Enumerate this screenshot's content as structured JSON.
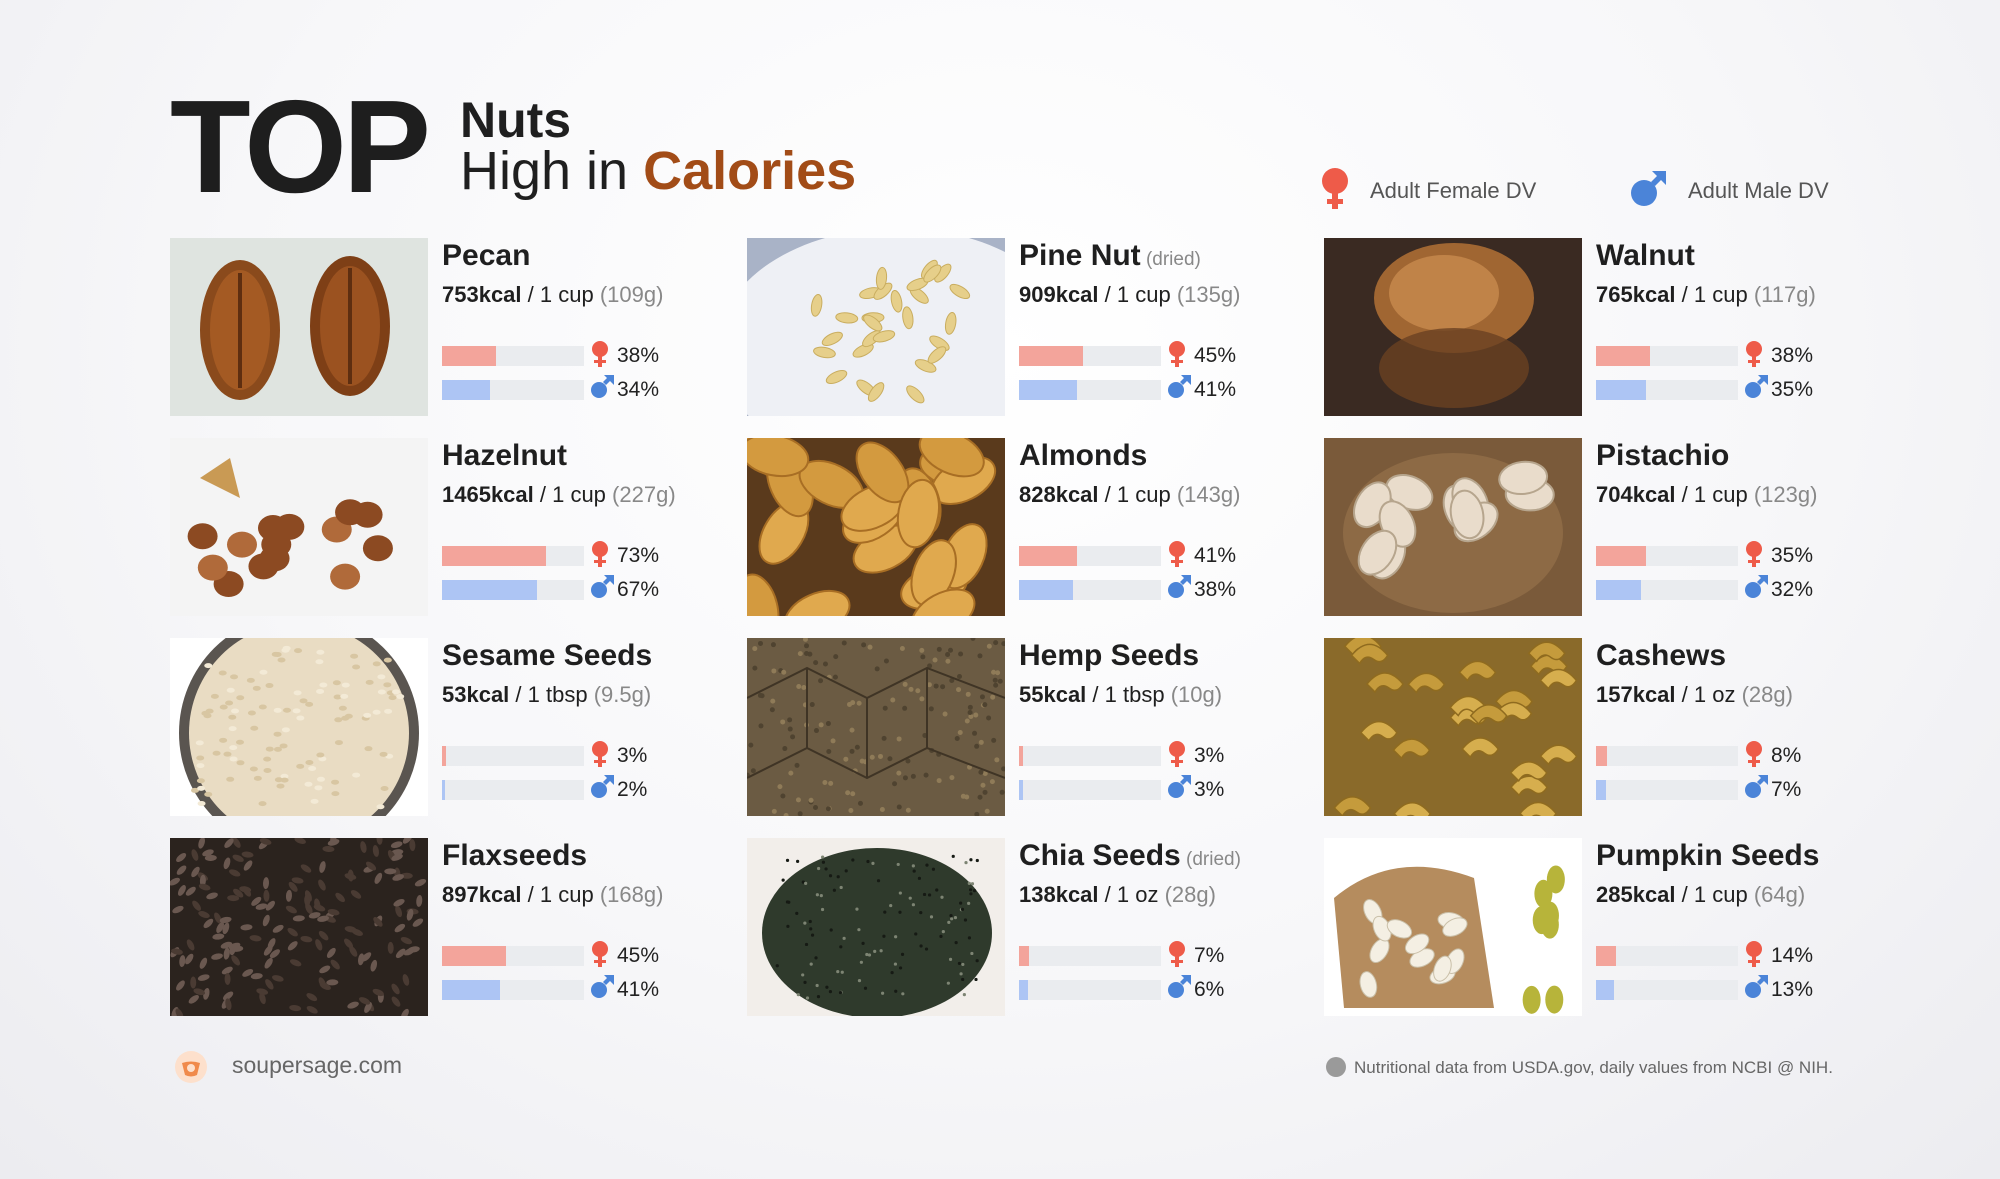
{
  "title": {
    "top": "TOP",
    "line1": "Nuts",
    "line2_prefix": "High in ",
    "line2_highlight": "Calories"
  },
  "legend": {
    "female": "Adult Female DV",
    "male": "Adult Male DV"
  },
  "colors": {
    "female": "#ee5b49",
    "male": "#4b84d8",
    "highlight": "#a24c17"
  },
  "items": [
    {
      "name": "Pecan",
      "note": "",
      "kcal": "753kcal",
      "serving": " / 1 cup ",
      "grams": "(109g)",
      "female_pct": "38%",
      "male_pct": "34%",
      "female": 38,
      "male": 34,
      "image": "pecan"
    },
    {
      "name": "Pine Nut",
      "note": " (dried)",
      "kcal": "909kcal",
      "serving": " / 1 cup ",
      "grams": "(135g)",
      "female_pct": "45%",
      "male_pct": "41%",
      "female": 45,
      "male": 41,
      "image": "pine-nut"
    },
    {
      "name": "Walnut",
      "note": "",
      "kcal": "765kcal",
      "serving": " / 1 cup ",
      "grams": "(117g)",
      "female_pct": "38%",
      "male_pct": "35%",
      "female": 38,
      "male": 35,
      "image": "walnut"
    },
    {
      "name": "Hazelnut",
      "note": "",
      "kcal": "1465kcal",
      "serving": " / 1 cup ",
      "grams": "(227g)",
      "female_pct": "73%",
      "male_pct": "67%",
      "female": 73,
      "male": 67,
      "image": "hazelnut"
    },
    {
      "name": "Almonds",
      "note": "",
      "kcal": "828kcal",
      "serving": " / 1 cup ",
      "grams": "(143g)",
      "female_pct": "41%",
      "male_pct": "38%",
      "female": 41,
      "male": 38,
      "image": "almonds"
    },
    {
      "name": "Pistachio",
      "note": "",
      "kcal": "704kcal",
      "serving": " / 1 cup ",
      "grams": "(123g)",
      "female_pct": "35%",
      "male_pct": "32%",
      "female": 35,
      "male": 32,
      "image": "pistachio"
    },
    {
      "name": "Sesame Seeds",
      "note": "",
      "kcal": "53kcal",
      "serving": " / 1 tbsp ",
      "grams": "(9.5g)",
      "female_pct": "3%",
      "male_pct": "2%",
      "female": 3,
      "male": 2,
      "image": "sesame"
    },
    {
      "name": "Hemp Seeds",
      "note": "",
      "kcal": "55kcal",
      "serving": " / 1 tbsp ",
      "grams": "(10g)",
      "female_pct": "3%",
      "male_pct": "3%",
      "female": 3,
      "male": 3,
      "image": "hemp"
    },
    {
      "name": "Cashews",
      "note": "",
      "kcal": "157kcal",
      "serving": " / 1 oz ",
      "grams": "(28g)",
      "female_pct": "8%",
      "male_pct": "7%",
      "female": 8,
      "male": 7,
      "image": "cashews"
    },
    {
      "name": "Flaxseeds",
      "note": "",
      "kcal": "897kcal",
      "serving": " / 1 cup ",
      "grams": "(168g)",
      "female_pct": "45%",
      "male_pct": "41%",
      "female": 45,
      "male": 41,
      "image": "flaxseeds"
    },
    {
      "name": "Chia Seeds",
      "note": " (dried)",
      "kcal": "138kcal",
      "serving": " / 1 oz ",
      "grams": "(28g)",
      "female_pct": "7%",
      "male_pct": "6%",
      "female": 7,
      "male": 6,
      "image": "chia"
    },
    {
      "name": "Pumpkin Seeds",
      "note": "",
      "kcal": "285kcal",
      "serving": " / 1 cup ",
      "grams": "(64g)",
      "female_pct": "14%",
      "male_pct": "13%",
      "female": 14,
      "male": 13,
      "image": "pumpkin"
    }
  ],
  "footer": {
    "site": "soupersage.com",
    "source_note": "Nutritional data from USDA.gov, daily values from NCBI @ NIH."
  }
}
